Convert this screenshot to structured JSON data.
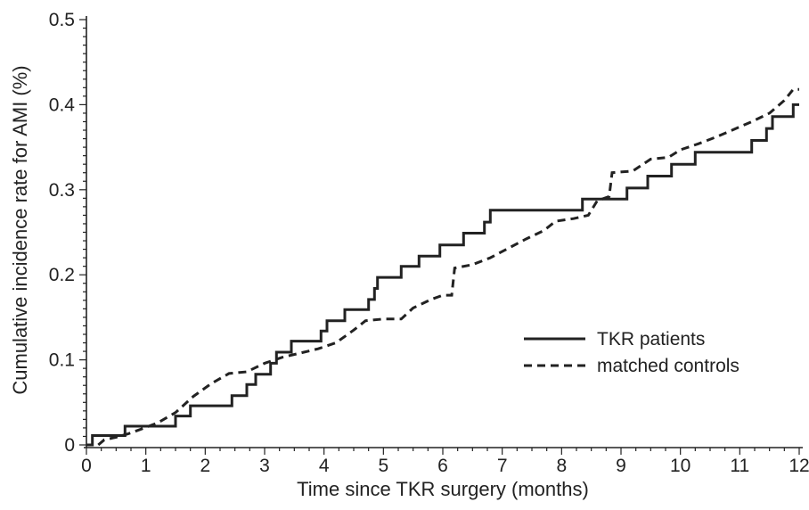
{
  "chart_data": {
    "type": "line",
    "title": "",
    "xlabel": "Time since TKR surgery (months)",
    "ylabel": "Cumulative incidence rate for AMI (%)",
    "xlim": [
      0,
      12
    ],
    "ylim": [
      0,
      0.5
    ],
    "xticks": [
      0,
      1,
      2,
      3,
      4,
      5,
      6,
      7,
      8,
      9,
      10,
      11,
      12
    ],
    "xtick_labels": [
      "0",
      "1",
      "2",
      "3",
      "4",
      "5",
      "6",
      "7",
      "8",
      "9",
      "10",
      "11",
      "12"
    ],
    "yticks": [
      0,
      0.1,
      0.2,
      0.3,
      0.4,
      0.5
    ],
    "ytick_labels": [
      "0",
      "0.1",
      "0.2",
      "0.3",
      "0.4",
      "0.5"
    ],
    "grid": false,
    "legend_position": "right",
    "series": [
      {
        "name": "TKR patients",
        "style": "solid",
        "color": "#222222",
        "points": [
          [
            0,
            0
          ],
          [
            0.1,
            0
          ],
          [
            0.1,
            0.011
          ],
          [
            0.65,
            0.011
          ],
          [
            0.65,
            0.022
          ],
          [
            1.5,
            0.022
          ],
          [
            1.5,
            0.034
          ],
          [
            1.75,
            0.034
          ],
          [
            1.75,
            0.046
          ],
          [
            2.45,
            0.046
          ],
          [
            2.45,
            0.058
          ],
          [
            2.7,
            0.058
          ],
          [
            2.7,
            0.071
          ],
          [
            2.85,
            0.071
          ],
          [
            2.85,
            0.083
          ],
          [
            3.1,
            0.083
          ],
          [
            3.1,
            0.096
          ],
          [
            3.2,
            0.096
          ],
          [
            3.2,
            0.109
          ],
          [
            3.45,
            0.109
          ],
          [
            3.45,
            0.122
          ],
          [
            3.95,
            0.122
          ],
          [
            3.95,
            0.134
          ],
          [
            4.05,
            0.134
          ],
          [
            4.05,
            0.146
          ],
          [
            4.35,
            0.146
          ],
          [
            4.35,
            0.159
          ],
          [
            4.75,
            0.159
          ],
          [
            4.75,
            0.171
          ],
          [
            4.85,
            0.171
          ],
          [
            4.85,
            0.184
          ],
          [
            4.9,
            0.184
          ],
          [
            4.9,
            0.197
          ],
          [
            5.3,
            0.197
          ],
          [
            5.3,
            0.21
          ],
          [
            5.6,
            0.21
          ],
          [
            5.6,
            0.222
          ],
          [
            5.95,
            0.222
          ],
          [
            5.95,
            0.235
          ],
          [
            6.35,
            0.235
          ],
          [
            6.35,
            0.249
          ],
          [
            6.7,
            0.249
          ],
          [
            6.7,
            0.262
          ],
          [
            6.8,
            0.262
          ],
          [
            6.8,
            0.276
          ],
          [
            8.35,
            0.276
          ],
          [
            8.35,
            0.289
          ],
          [
            9.1,
            0.289
          ],
          [
            9.1,
            0.302
          ],
          [
            9.45,
            0.302
          ],
          [
            9.45,
            0.316
          ],
          [
            9.85,
            0.316
          ],
          [
            9.85,
            0.33
          ],
          [
            10.25,
            0.33
          ],
          [
            10.25,
            0.344
          ],
          [
            11.2,
            0.344
          ],
          [
            11.2,
            0.358
          ],
          [
            11.45,
            0.358
          ],
          [
            11.45,
            0.372
          ],
          [
            11.55,
            0.372
          ],
          [
            11.55,
            0.386
          ],
          [
            11.9,
            0.386
          ],
          [
            11.9,
            0.4
          ],
          [
            12.0,
            0.4
          ]
        ]
      },
      {
        "name": "matched controls",
        "style": "dashed",
        "color": "#222222",
        "points": [
          [
            0.2,
            0
          ],
          [
            0.3,
            0.006
          ],
          [
            0.5,
            0.009
          ],
          [
            0.7,
            0.013
          ],
          [
            0.9,
            0.018
          ],
          [
            1.2,
            0.026
          ],
          [
            1.5,
            0.038
          ],
          [
            1.8,
            0.057
          ],
          [
            2.1,
            0.072
          ],
          [
            2.4,
            0.084
          ],
          [
            2.7,
            0.086
          ],
          [
            3.0,
            0.096
          ],
          [
            3.3,
            0.103
          ],
          [
            3.6,
            0.108
          ],
          [
            3.9,
            0.113
          ],
          [
            4.2,
            0.12
          ],
          [
            4.5,
            0.135
          ],
          [
            4.7,
            0.146
          ],
          [
            5.0,
            0.148
          ],
          [
            5.3,
            0.148
          ],
          [
            5.5,
            0.161
          ],
          [
            5.8,
            0.171
          ],
          [
            6.0,
            0.176
          ],
          [
            6.15,
            0.176
          ],
          [
            6.2,
            0.208
          ],
          [
            6.5,
            0.212
          ],
          [
            6.8,
            0.22
          ],
          [
            7.1,
            0.231
          ],
          [
            7.4,
            0.242
          ],
          [
            7.7,
            0.252
          ],
          [
            7.9,
            0.263
          ],
          [
            8.2,
            0.266
          ],
          [
            8.45,
            0.27
          ],
          [
            8.6,
            0.287
          ],
          [
            8.8,
            0.292
          ],
          [
            8.85,
            0.32
          ],
          [
            9.2,
            0.322
          ],
          [
            9.5,
            0.336
          ],
          [
            9.8,
            0.338
          ],
          [
            10.0,
            0.347
          ],
          [
            10.3,
            0.354
          ],
          [
            10.6,
            0.362
          ],
          [
            10.9,
            0.371
          ],
          [
            11.2,
            0.38
          ],
          [
            11.5,
            0.39
          ],
          [
            11.75,
            0.405
          ],
          [
            11.9,
            0.418
          ],
          [
            12.0,
            0.418
          ]
        ]
      }
    ]
  }
}
